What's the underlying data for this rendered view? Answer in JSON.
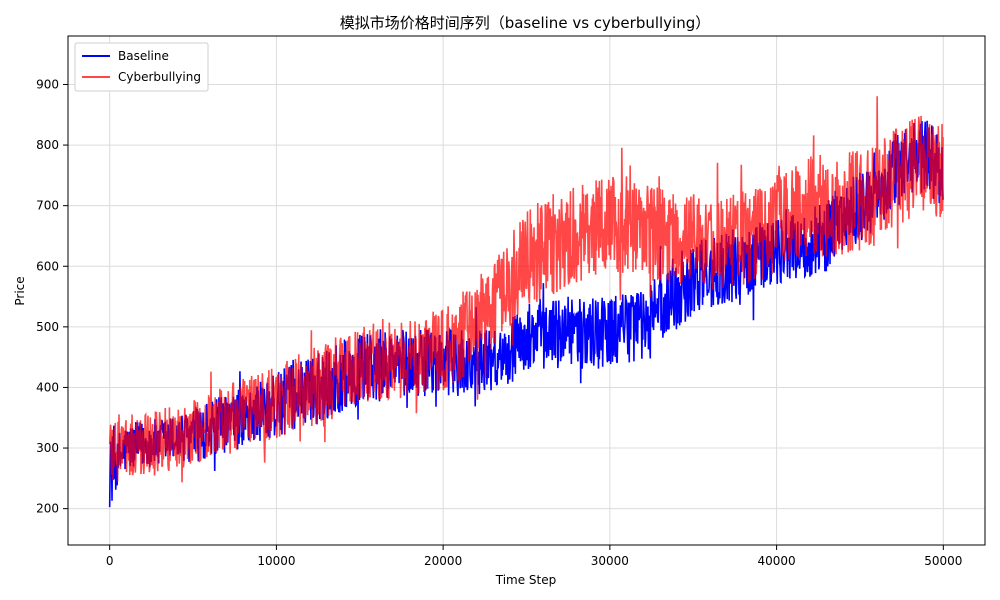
{
  "chart_data": {
    "type": "line",
    "title": "模拟市场价格时间序列（baseline vs cyberbullying）",
    "xlabel": "Time Step",
    "ylabel": "Price",
    "xlim": [
      -2500,
      52500
    ],
    "ylim": [
      140,
      980
    ],
    "grid": true,
    "legend": "top-left",
    "xticks": [
      0,
      10000,
      20000,
      30000,
      40000,
      50000
    ],
    "xtick_labels": [
      "0",
      "10000",
      "20000",
      "30000",
      "40000",
      "50000"
    ],
    "yticks": [
      200,
      300,
      400,
      500,
      600,
      700,
      800,
      900
    ],
    "ytick_labels": [
      "200",
      "300",
      "400",
      "500",
      "600",
      "700",
      "800",
      "900"
    ],
    "series": [
      {
        "name": "Baseline",
        "color": "#0000ff",
        "opacity": 1.0,
        "x": [
          0,
          1000,
          2000,
          3000,
          4000,
          5000,
          6000,
          7000,
          8000,
          9000,
          10000,
          11000,
          12000,
          13000,
          14000,
          15000,
          16000,
          17000,
          18000,
          19000,
          20000,
          21000,
          22000,
          23000,
          24000,
          25000,
          26000,
          27000,
          28000,
          29000,
          30000,
          31000,
          32000,
          33000,
          34000,
          35000,
          36000,
          37000,
          38000,
          39000,
          40000,
          41000,
          42000,
          43000,
          44000,
          45000,
          46000,
          47000,
          48000,
          49000,
          50000
        ],
        "center": [
          260,
          300,
          305,
          310,
          315,
          320,
          330,
          340,
          350,
          360,
          370,
          385,
          395,
          405,
          420,
          430,
          435,
          440,
          440,
          440,
          440,
          440,
          440,
          450,
          460,
          480,
          490,
          490,
          490,
          490,
          490,
          500,
          510,
          530,
          560,
          580,
          590,
          600,
          610,
          620,
          625,
          630,
          640,
          650,
          680,
          700,
          720,
          750,
          780,
          780,
          760
        ],
        "amplitude": [
          60,
          40,
          40,
          40,
          40,
          45,
          45,
          50,
          50,
          50,
          55,
          55,
          55,
          60,
          60,
          60,
          60,
          60,
          55,
          55,
          55,
          55,
          55,
          55,
          55,
          60,
          60,
          60,
          60,
          60,
          60,
          60,
          65,
          65,
          65,
          60,
          60,
          60,
          60,
          60,
          60,
          60,
          60,
          60,
          60,
          60,
          60,
          65,
          65,
          65,
          60
        ]
      },
      {
        "name": "Cyberbullying",
        "color": "#ff0000",
        "opacity": 0.72,
        "x": [
          0,
          1000,
          2000,
          3000,
          4000,
          5000,
          6000,
          7000,
          8000,
          9000,
          10000,
          11000,
          12000,
          13000,
          14000,
          15000,
          16000,
          17000,
          18000,
          19000,
          20000,
          21000,
          22000,
          23000,
          24000,
          25000,
          26000,
          27000,
          28000,
          29000,
          30000,
          31000,
          32000,
          33000,
          34000,
          35000,
          36000,
          37000,
          38000,
          39000,
          40000,
          41000,
          42000,
          43000,
          44000,
          45000,
          46000,
          47000,
          48000,
          49000,
          50000
        ],
        "center": [
          300,
          300,
          305,
          310,
          320,
          325,
          335,
          345,
          355,
          365,
          375,
          390,
          400,
          410,
          425,
          435,
          445,
          450,
          455,
          460,
          460,
          480,
          500,
          540,
          580,
          610,
          630,
          640,
          650,
          660,
          670,
          670,
          660,
          650,
          645,
          640,
          635,
          640,
          645,
          650,
          670,
          690,
          700,
          700,
          700,
          710,
          720,
          740,
          760,
          770,
          760
        ],
        "amplitude": [
          70,
          55,
          55,
          55,
          55,
          55,
          55,
          60,
          60,
          60,
          60,
          65,
          65,
          65,
          65,
          65,
          65,
          70,
          70,
          70,
          70,
          75,
          75,
          80,
          80,
          80,
          85,
          85,
          85,
          85,
          85,
          80,
          80,
          80,
          75,
          75,
          75,
          75,
          80,
          80,
          80,
          85,
          85,
          85,
          85,
          85,
          85,
          85,
          85,
          85,
          80
        ]
      }
    ]
  }
}
